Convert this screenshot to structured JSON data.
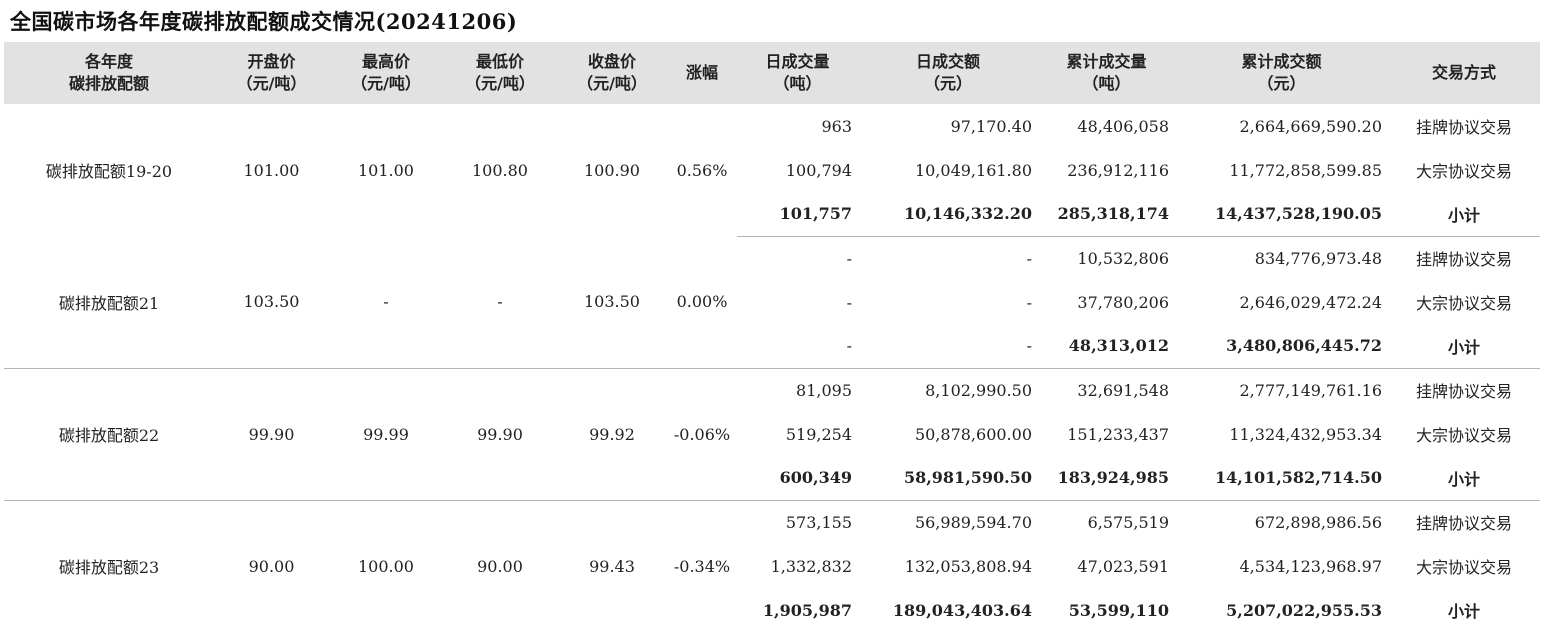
{
  "title": "全国碳市场各年度碳排放配额成交情况(20241206)",
  "headers": [
    {
      "l1": "各年度",
      "l2": "碳排放配额"
    },
    {
      "l1": "开盘价",
      "l2": "（元/吨）"
    },
    {
      "l1": "最高价",
      "l2": "（元/吨）"
    },
    {
      "l1": "最低价",
      "l2": "（元/吨）"
    },
    {
      "l1": "收盘价",
      "l2": "（元/吨）"
    },
    {
      "l1": "涨幅",
      "l2": ""
    },
    {
      "l1": "日成交量",
      "l2": "（吨）"
    },
    {
      "l1": "日成交额",
      "l2": "（元）"
    },
    {
      "l1": "累计成交量",
      "l2": "（吨）"
    },
    {
      "l1": "累计成交额",
      "l2": "（元）"
    },
    {
      "l1": "交易方式",
      "l2": ""
    }
  ],
  "groups": [
    {
      "name": "碳排放配额19-20",
      "open": "101.00",
      "high": "101.00",
      "low": "100.80",
      "close": "100.90",
      "change": "0.56%",
      "rows": [
        {
          "dv": "963",
          "da": "97,170.40",
          "cv": "48,406,058",
          "ca": "2,664,669,590.20",
          "mode": "挂牌协议交易"
        },
        {
          "dv": "100,794",
          "da": "10,049,161.80",
          "cv": "236,912,116",
          "ca": "11,772,858,599.85",
          "mode": "大宗协议交易"
        },
        {
          "dv": "101,757",
          "da": "10,146,332.20",
          "cv": "285,318,174",
          "ca": "14,437,528,190.05",
          "mode": "小计"
        }
      ]
    },
    {
      "name": "碳排放配额21",
      "open": "103.50",
      "high": "-",
      "low": "-",
      "close": "103.50",
      "change": "0.00%",
      "rows": [
        {
          "dv": "-",
          "da": "-",
          "cv": "10,532,806",
          "ca": "834,776,973.48",
          "mode": "挂牌协议交易"
        },
        {
          "dv": "-",
          "da": "-",
          "cv": "37,780,206",
          "ca": "2,646,029,472.24",
          "mode": "大宗协议交易"
        },
        {
          "dv": "-",
          "da": "-",
          "cv": "48,313,012",
          "ca": "3,480,806,445.72",
          "mode": "小计"
        }
      ]
    },
    {
      "name": "碳排放配额22",
      "open": "99.90",
      "high": "99.99",
      "low": "99.90",
      "close": "99.92",
      "change": "-0.06%",
      "rows": [
        {
          "dv": "81,095",
          "da": "8,102,990.50",
          "cv": "32,691,548",
          "ca": "2,777,149,761.16",
          "mode": "挂牌协议交易"
        },
        {
          "dv": "519,254",
          "da": "50,878,600.00",
          "cv": "151,233,437",
          "ca": "11,324,432,953.34",
          "mode": "大宗协议交易"
        },
        {
          "dv": "600,349",
          "da": "58,981,590.50",
          "cv": "183,924,985",
          "ca": "14,101,582,714.50",
          "mode": "小计"
        }
      ]
    },
    {
      "name": "碳排放配额23",
      "open": "90.00",
      "high": "100.00",
      "low": "90.00",
      "close": "99.43",
      "change": "-0.34%",
      "rows": [
        {
          "dv": "573,155",
          "da": "56,989,594.70",
          "cv": "6,575,519",
          "ca": "672,898,986.56",
          "mode": "挂牌协议交易"
        },
        {
          "dv": "1,332,832",
          "da": "132,053,808.94",
          "cv": "47,023,591",
          "ca": "4,534,123,968.97",
          "mode": "大宗协议交易"
        },
        {
          "dv": "1,905,987",
          "da": "189,043,403.64",
          "cv": "53,599,110",
          "ca": "5,207,022,955.53",
          "mode": "小计"
        }
      ]
    }
  ]
}
